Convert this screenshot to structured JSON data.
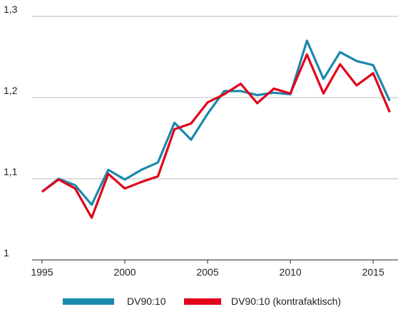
{
  "chart_data": {
    "type": "line",
    "x": [
      1995,
      1996,
      1997,
      1998,
      1999,
      2000,
      2001,
      2002,
      2003,
      2004,
      2005,
      2006,
      2007,
      2008,
      2009,
      2010,
      2011,
      2012,
      2013,
      2014,
      2015,
      2016
    ],
    "series": [
      {
        "name": "DV90:10",
        "color": "#1a88ad",
        "values": [
          1.084,
          1.1,
          1.092,
          1.068,
          1.111,
          1.099,
          1.111,
          1.12,
          1.169,
          1.148,
          1.18,
          1.208,
          1.208,
          1.203,
          1.206,
          1.204,
          1.27,
          1.223,
          1.256,
          1.245,
          1.24,
          1.196
        ]
      },
      {
        "name": "DV90:10 (kontrafaktisch)",
        "color": "#e2001a",
        "values": [
          1.084,
          1.099,
          1.088,
          1.052,
          1.106,
          1.088,
          1.096,
          1.103,
          1.161,
          1.168,
          1.194,
          1.204,
          1.217,
          1.193,
          1.211,
          1.205,
          1.253,
          1.205,
          1.241,
          1.215,
          1.23,
          1.182
        ]
      }
    ],
    "xlim": [
      1994.4,
      2016.5
    ],
    "xticks": [
      1995,
      2000,
      2005,
      2010,
      2015
    ],
    "ylim": [
      1,
      1.3
    ],
    "yticks": [
      1,
      {
        "value": 1.1,
        "label": "1,1"
      },
      {
        "value": 1.2,
        "label": "1,2"
      },
      {
        "value": 1.3,
        "label": "1,3"
      }
    ],
    "grid": true,
    "legend": "bottom"
  }
}
